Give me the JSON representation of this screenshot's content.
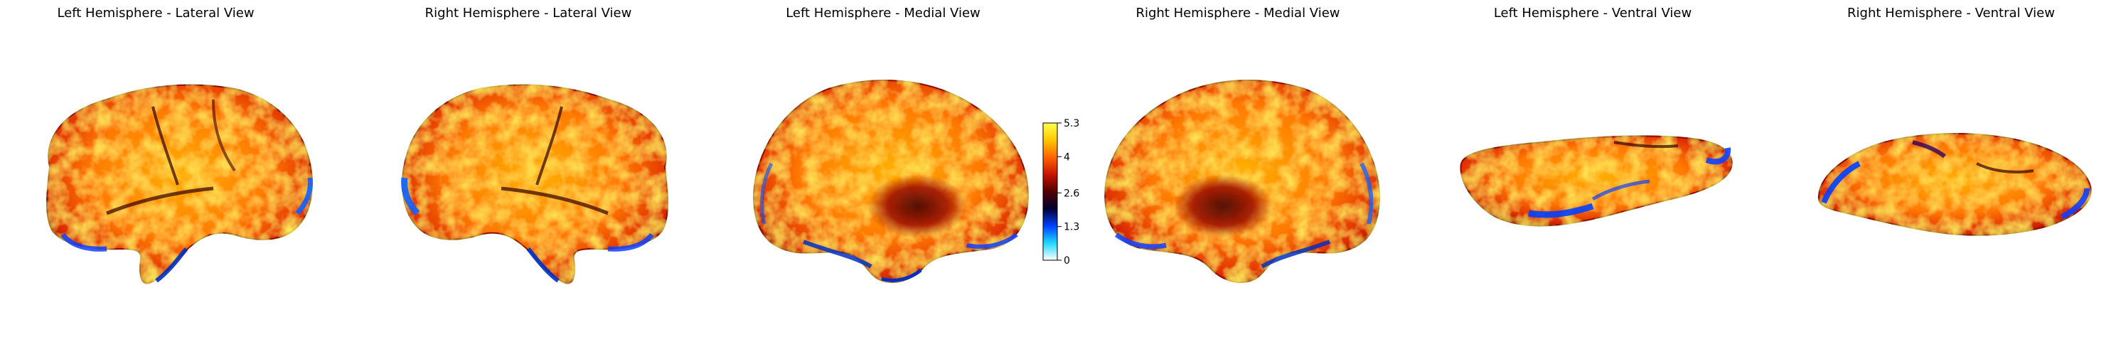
{
  "panels": [
    {
      "title": "Left Hemisphere - Lateral View",
      "view": "left-lateral"
    },
    {
      "title": "Right Hemisphere - Lateral View",
      "view": "right-lateral"
    },
    {
      "title": "Left Hemisphere - Medial View",
      "view": "left-medial"
    },
    {
      "title": "Right Hemisphere - Medial View",
      "view": "right-medial"
    },
    {
      "title": "Left Hemisphere - Ventral View",
      "view": "left-ventral"
    },
    {
      "title": "Right Hemisphere - Ventral View",
      "view": "right-ventral"
    }
  ],
  "colorbar": {
    "min": 0,
    "max": 5.3,
    "ticks": [
      "5.3",
      "4",
      "2.6",
      "1.3",
      "0"
    ],
    "colormap": [
      "#ffffff",
      "#1ed8ff",
      "#0040ff",
      "#000030",
      "#500000",
      "#c81400",
      "#ff6400",
      "#ffc800",
      "#ffff50"
    ]
  }
}
